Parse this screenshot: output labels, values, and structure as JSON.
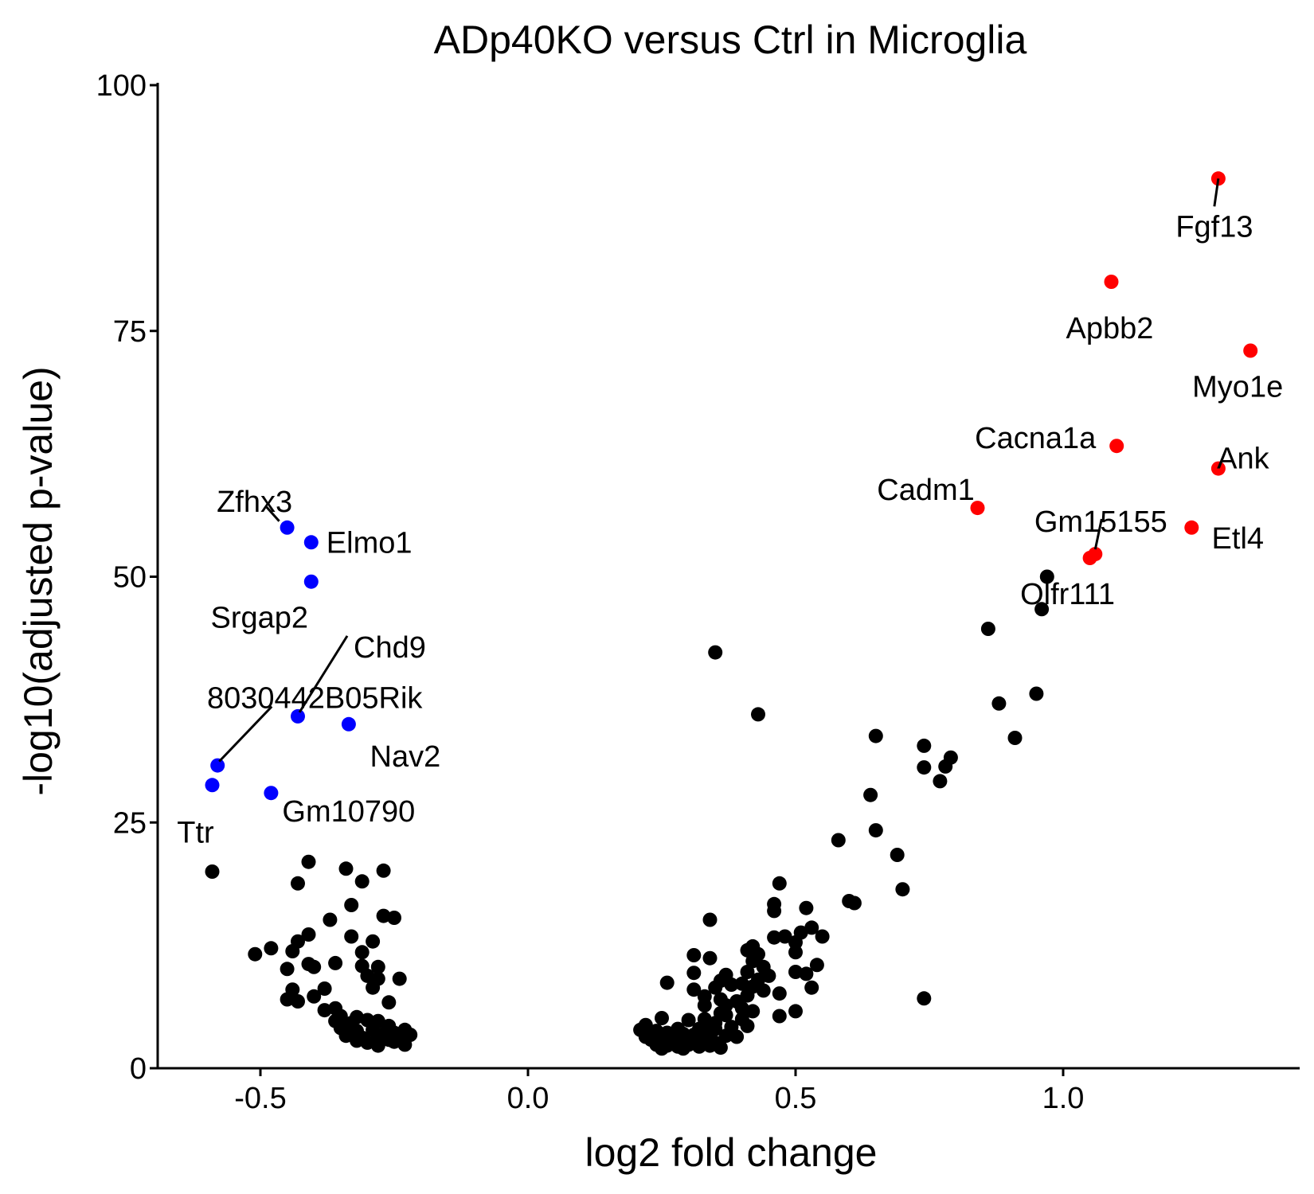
{
  "chart_data": {
    "type": "scatter",
    "title": "ADp40KO versus Ctrl in Microglia",
    "xlabel": "log2 fold change",
    "ylabel": "-log10(adjusted p-value)",
    "xlim": [
      -0.7,
      1.43
    ],
    "ylim": [
      0,
      100
    ],
    "x_ticks": [
      -0.5,
      0.0,
      0.5,
      1.0
    ],
    "x_tick_labels": [
      "-0.5",
      "0.0",
      "0.5",
      "1.0"
    ],
    "y_ticks": [
      0,
      25,
      50,
      75,
      100
    ],
    "y_tick_labels": [
      "0",
      "25",
      "50",
      "75",
      "100"
    ],
    "grid": false,
    "legend": "none",
    "colors": {
      "up": "#ff0000",
      "down": "#0000ff",
      "ns": "#000000"
    },
    "series": [
      {
        "group": "up",
        "points": [
          {
            "label": "Fgf13",
            "x": 1.29,
            "y": 90.5
          },
          {
            "label": "Apbb2",
            "x": 1.09,
            "y": 80.0
          },
          {
            "label": "Myo1e",
            "x": 1.35,
            "y": 73.0
          },
          {
            "label": "Cacna1a",
            "x": 1.1,
            "y": 63.3
          },
          {
            "label": "Ank",
            "x": 1.29,
            "y": 61.0
          },
          {
            "label": "Cadm1",
            "x": 0.84,
            "y": 57.0
          },
          {
            "label": "Etl4",
            "x": 1.24,
            "y": 55.0
          },
          {
            "label": "Gm15155",
            "x": 1.06,
            "y": 52.3
          },
          {
            "label": "Olfr111",
            "x": 1.05,
            "y": 51.9
          }
        ]
      },
      {
        "group": "down",
        "points": [
          {
            "label": "Zfhx3",
            "x": -0.45,
            "y": 55.0
          },
          {
            "label": "Elmo1",
            "x": -0.405,
            "y": 53.5
          },
          {
            "label": "Srgap2",
            "x": -0.405,
            "y": 49.5
          },
          {
            "label": "Chd9",
            "x": -0.43,
            "y": 35.8
          },
          {
            "label": "Nav2",
            "x": -0.335,
            "y": 35.0
          },
          {
            "label": "8030442B05Rik",
            "x": -0.58,
            "y": 30.8
          },
          {
            "label": "Gm10790",
            "x": -0.48,
            "y": 28.0
          },
          {
            "label": "Ttr",
            "x": -0.59,
            "y": 28.8
          }
        ]
      },
      {
        "group": "ns",
        "points": [
          {
            "x": 0.35,
            "y": 42.3
          },
          {
            "x": 0.43,
            "y": 36.0
          },
          {
            "x": 0.97,
            "y": 50.0
          },
          {
            "x": 0.96,
            "y": 46.7
          },
          {
            "x": 0.86,
            "y": 44.7
          },
          {
            "x": 0.95,
            "y": 38.1
          },
          {
            "x": 0.88,
            "y": 37.1
          },
          {
            "x": 0.91,
            "y": 33.6
          },
          {
            "x": 0.65,
            "y": 33.8
          },
          {
            "x": 0.74,
            "y": 32.8
          },
          {
            "x": 0.79,
            "y": 31.6
          },
          {
            "x": 0.74,
            "y": 30.6
          },
          {
            "x": 0.78,
            "y": 30.7
          },
          {
            "x": 0.77,
            "y": 29.2
          },
          {
            "x": 0.64,
            "y": 27.8
          },
          {
            "x": 0.65,
            "y": 24.2
          },
          {
            "x": 0.58,
            "y": 23.2
          },
          {
            "x": 0.69,
            "y": 21.7
          },
          {
            "x": 0.7,
            "y": 18.2
          },
          {
            "x": 0.6,
            "y": 17.0
          },
          {
            "x": 0.61,
            "y": 16.8
          },
          {
            "x": 0.74,
            "y": 7.1
          },
          {
            "x": 0.47,
            "y": 18.8
          },
          {
            "x": 0.46,
            "y": 16.7
          },
          {
            "x": 0.52,
            "y": 16.3
          },
          {
            "x": 0.46,
            "y": 16.0
          },
          {
            "x": 0.34,
            "y": 15.1
          },
          {
            "x": 0.53,
            "y": 14.3
          },
          {
            "x": 0.51,
            "y": 13.8
          },
          {
            "x": 0.55,
            "y": 13.4
          },
          {
            "x": 0.48,
            "y": 13.4
          },
          {
            "x": 0.46,
            "y": 13.3
          },
          {
            "x": 0.42,
            "y": 12.4
          },
          {
            "x": 0.5,
            "y": 12.8
          },
          {
            "x": 0.5,
            "y": 11.8
          },
          {
            "x": 0.54,
            "y": 10.5
          },
          {
            "x": 0.5,
            "y": 9.8
          },
          {
            "x": 0.52,
            "y": 9.6
          },
          {
            "x": 0.31,
            "y": 11.5
          },
          {
            "x": 0.34,
            "y": 11.2
          },
          {
            "x": 0.41,
            "y": 12.0
          },
          {
            "x": 0.43,
            "y": 11.6
          },
          {
            "x": 0.42,
            "y": 10.9
          },
          {
            "x": 0.44,
            "y": 10.3
          },
          {
            "x": 0.41,
            "y": 9.8
          },
          {
            "x": 0.45,
            "y": 9.4
          },
          {
            "x": 0.31,
            "y": 9.7
          },
          {
            "x": 0.37,
            "y": 9.5
          },
          {
            "x": 0.43,
            "y": 9.0
          },
          {
            "x": 0.4,
            "y": 8.6
          },
          {
            "x": 0.36,
            "y": 8.9
          },
          {
            "x": 0.38,
            "y": 8.5
          },
          {
            "x": 0.26,
            "y": 8.7
          },
          {
            "x": 0.35,
            "y": 8.2
          },
          {
            "x": 0.31,
            "y": 8.0
          },
          {
            "x": 0.42,
            "y": 8.3
          },
          {
            "x": 0.44,
            "y": 7.9
          },
          {
            "x": 0.53,
            "y": 8.2
          },
          {
            "x": 0.47,
            "y": 7.6
          },
          {
            "x": 0.41,
            "y": 7.4
          },
          {
            "x": 0.33,
            "y": 7.3
          },
          {
            "x": 0.36,
            "y": 7.0
          },
          {
            "x": 0.39,
            "y": 6.8
          },
          {
            "x": 0.37,
            "y": 6.4
          },
          {
            "x": 0.33,
            "y": 6.4
          },
          {
            "x": 0.4,
            "y": 6.1
          },
          {
            "x": 0.42,
            "y": 5.8
          },
          {
            "x": 0.36,
            "y": 5.6
          },
          {
            "x": 0.37,
            "y": 5.4
          },
          {
            "x": 0.4,
            "y": 5.0
          },
          {
            "x": 0.47,
            "y": 5.3
          },
          {
            "x": 0.5,
            "y": 5.8
          },
          {
            "x": 0.33,
            "y": 5.0
          },
          {
            "x": 0.25,
            "y": 5.1
          },
          {
            "x": 0.3,
            "y": 4.9
          },
          {
            "x": 0.35,
            "y": 4.6
          },
          {
            "x": 0.41,
            "y": 4.3
          },
          {
            "x": 0.38,
            "y": 4.2
          },
          {
            "x": 0.35,
            "y": 4.0
          },
          {
            "x": 0.32,
            "y": 4.0
          },
          {
            "x": 0.28,
            "y": 4.0
          },
          {
            "x": 0.22,
            "y": 4.4
          },
          {
            "x": 0.21,
            "y": 3.9
          },
          {
            "x": 0.24,
            "y": 3.8
          },
          {
            "x": 0.26,
            "y": 3.6
          },
          {
            "x": 0.29,
            "y": 3.5
          },
          {
            "x": 0.31,
            "y": 3.4
          },
          {
            "x": 0.34,
            "y": 3.7
          },
          {
            "x": 0.37,
            "y": 3.3
          },
          {
            "x": 0.39,
            "y": 3.2
          },
          {
            "x": 0.22,
            "y": 3.2
          },
          {
            "x": 0.23,
            "y": 2.9
          },
          {
            "x": 0.25,
            "y": 2.8
          },
          {
            "x": 0.27,
            "y": 2.9
          },
          {
            "x": 0.28,
            "y": 2.6
          },
          {
            "x": 0.3,
            "y": 2.8
          },
          {
            "x": 0.32,
            "y": 2.7
          },
          {
            "x": 0.33,
            "y": 2.9
          },
          {
            "x": 0.35,
            "y": 2.6
          },
          {
            "x": 0.24,
            "y": 2.4
          },
          {
            "x": 0.26,
            "y": 2.3
          },
          {
            "x": 0.28,
            "y": 2.2
          },
          {
            "x": 0.3,
            "y": 2.4
          },
          {
            "x": 0.32,
            "y": 2.2
          },
          {
            "x": 0.34,
            "y": 2.3
          },
          {
            "x": 0.36,
            "y": 2.1
          },
          {
            "x": 0.25,
            "y": 2.0
          },
          {
            "x": 0.29,
            "y": 2.0
          },
          {
            "x": -0.59,
            "y": 20.0
          },
          {
            "x": -0.41,
            "y": 21.0
          },
          {
            "x": -0.34,
            "y": 20.3
          },
          {
            "x": -0.27,
            "y": 20.1
          },
          {
            "x": -0.43,
            "y": 18.8
          },
          {
            "x": -0.31,
            "y": 19.0
          },
          {
            "x": -0.33,
            "y": 16.6
          },
          {
            "x": -0.27,
            "y": 15.5
          },
          {
            "x": -0.25,
            "y": 15.3
          },
          {
            "x": -0.37,
            "y": 15.1
          },
          {
            "x": -0.41,
            "y": 13.6
          },
          {
            "x": -0.33,
            "y": 13.4
          },
          {
            "x": -0.29,
            "y": 12.9
          },
          {
            "x": -0.43,
            "y": 12.9
          },
          {
            "x": -0.51,
            "y": 11.6
          },
          {
            "x": -0.48,
            "y": 12.2
          },
          {
            "x": -0.44,
            "y": 11.9
          },
          {
            "x": -0.41,
            "y": 10.6
          },
          {
            "x": -0.36,
            "y": 10.7
          },
          {
            "x": -0.31,
            "y": 11.8
          },
          {
            "x": -0.31,
            "y": 10.4
          },
          {
            "x": -0.28,
            "y": 10.3
          },
          {
            "x": -0.45,
            "y": 10.1
          },
          {
            "x": -0.4,
            "y": 10.3
          },
          {
            "x": -0.3,
            "y": 9.4
          },
          {
            "x": -0.28,
            "y": 9.1
          },
          {
            "x": -0.24,
            "y": 9.1
          },
          {
            "x": -0.44,
            "y": 8.0
          },
          {
            "x": -0.38,
            "y": 8.1
          },
          {
            "x": -0.29,
            "y": 8.2
          },
          {
            "x": -0.45,
            "y": 7.0
          },
          {
            "x": -0.4,
            "y": 7.3
          },
          {
            "x": -0.43,
            "y": 6.8
          },
          {
            "x": -0.26,
            "y": 6.7
          },
          {
            "x": -0.36,
            "y": 6.1
          },
          {
            "x": -0.38,
            "y": 5.9
          },
          {
            "x": -0.35,
            "y": 5.3
          },
          {
            "x": -0.32,
            "y": 5.2
          },
          {
            "x": -0.36,
            "y": 4.8
          },
          {
            "x": -0.33,
            "y": 4.6
          },
          {
            "x": -0.3,
            "y": 4.9
          },
          {
            "x": -0.28,
            "y": 4.8
          },
          {
            "x": -0.26,
            "y": 4.3
          },
          {
            "x": -0.35,
            "y": 4.1
          },
          {
            "x": -0.32,
            "y": 3.8
          },
          {
            "x": -0.29,
            "y": 3.9
          },
          {
            "x": -0.27,
            "y": 3.5
          },
          {
            "x": -0.25,
            "y": 3.6
          },
          {
            "x": -0.23,
            "y": 3.9
          },
          {
            "x": -0.34,
            "y": 3.3
          },
          {
            "x": -0.31,
            "y": 3.1
          },
          {
            "x": -0.28,
            "y": 3.0
          },
          {
            "x": -0.26,
            "y": 2.9
          },
          {
            "x": -0.24,
            "y": 3.0
          },
          {
            "x": -0.22,
            "y": 3.4
          },
          {
            "x": -0.3,
            "y": 2.6
          },
          {
            "x": -0.28,
            "y": 2.3
          },
          {
            "x": -0.25,
            "y": 2.7
          },
          {
            "x": -0.23,
            "y": 2.4
          },
          {
            "x": -0.32,
            "y": 2.8
          }
        ]
      }
    ]
  }
}
